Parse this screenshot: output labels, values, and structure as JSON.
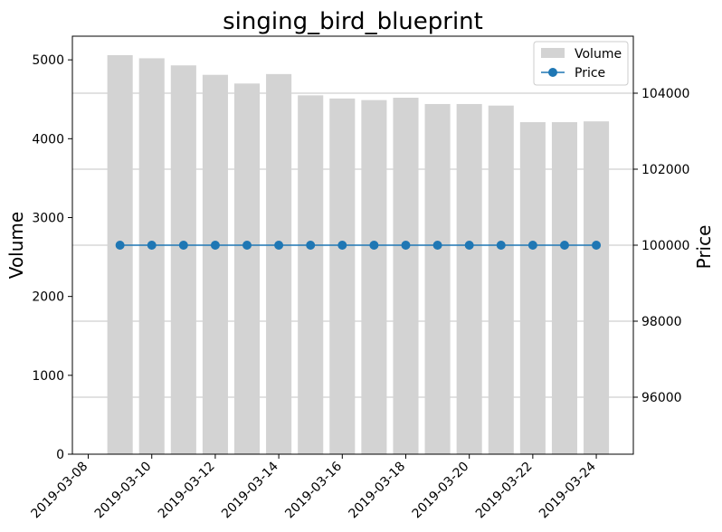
{
  "chart_data": {
    "type": "bar+line",
    "title": "singing_bird_blueprint",
    "x": [
      "2019-03-09",
      "2019-03-10",
      "2019-03-11",
      "2019-03-12",
      "2019-03-13",
      "2019-03-14",
      "2019-03-15",
      "2019-03-16",
      "2019-03-17",
      "2019-03-18",
      "2019-03-19",
      "2019-03-20",
      "2019-03-21",
      "2019-03-22",
      "2019-03-23",
      "2019-03-24"
    ],
    "x_ticks": [
      "2019-03-08",
      "2019-03-10",
      "2019-03-12",
      "2019-03-14",
      "2019-03-16",
      "2019-03-18",
      "2019-03-20",
      "2019-03-22",
      "2019-03-24"
    ],
    "xlim": [
      "2019-03-07T12:00",
      "2019-03-25T04:00"
    ],
    "ylabel_left": "Volume",
    "ylabel_right": "Price",
    "ylim_left": [
      0,
      5300
    ],
    "yticks_left": [
      0,
      1000,
      2000,
      3000,
      4000,
      5000
    ],
    "ylim_right": [
      94500,
      105500
    ],
    "yticks_right": [
      96000,
      98000,
      100000,
      102000,
      104000
    ],
    "grid": "horizontal lines on right axis",
    "legend_placement": "top-right",
    "series": [
      {
        "name": "Volume",
        "kind": "bar",
        "axis": "left",
        "color": "#d3d3d3",
        "values": [
          5060,
          5020,
          4930,
          4810,
          4700,
          4820,
          4550,
          4510,
          4490,
          4520,
          4440,
          4440,
          4420,
          4210,
          4210,
          4220
        ]
      },
      {
        "name": "Price",
        "kind": "line",
        "axis": "right",
        "color": "#1f77b4",
        "values": [
          100000,
          100000,
          100000,
          100000,
          100000,
          100000,
          100000,
          100000,
          100000,
          100000,
          100000,
          100000,
          100000,
          100000,
          100000,
          100000
        ]
      }
    ]
  }
}
